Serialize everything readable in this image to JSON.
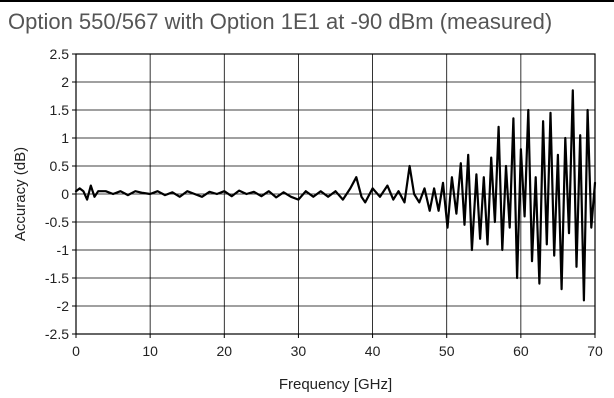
{
  "chart_data": {
    "type": "line",
    "title": "Option 550/567 with Option 1E1 at -90 dBm (measured)",
    "xlabel": "Frequency [GHz]",
    "ylabel": "Accuracy (dB)",
    "xlim": [
      0,
      70
    ],
    "ylim": [
      -2.5,
      2.5
    ],
    "x_ticks": [
      "0",
      "10",
      "20",
      "30",
      "40",
      "50",
      "60",
      "70"
    ],
    "y_ticks": [
      "2.5",
      "2",
      "1.5",
      "1",
      "0.5",
      "0",
      "-0.5",
      "-1",
      "-1.5",
      "-2",
      "-2.5"
    ],
    "grid": true,
    "line_color": "#000000",
    "series": [
      {
        "x": [
          0,
          0.5,
          1,
          1.5,
          2,
          2.5,
          3,
          4,
          5,
          6,
          7,
          8,
          9,
          10,
          11,
          12,
          13,
          14,
          15,
          16,
          17,
          18,
          19,
          20,
          21,
          22,
          23,
          24,
          25,
          26,
          27,
          28,
          29,
          30,
          31,
          32,
          33,
          34,
          35,
          36,
          37,
          37.8,
          38.5,
          39,
          40,
          41,
          42,
          42.8,
          43.5,
          44.3,
          45,
          45.6,
          46.3,
          47,
          47.7,
          48.3,
          48.9,
          49.5,
          50.1,
          50.7,
          51.3,
          51.9,
          52.4,
          52.9,
          53.4,
          54,
          54.5,
          55,
          55.5,
          56,
          56.5,
          57,
          57.5,
          58,
          58.5,
          59,
          59.5,
          60,
          60.5,
          61,
          61.5,
          62,
          62.5,
          63,
          63.5,
          64,
          64.5,
          65,
          65.5,
          66,
          66.5,
          67,
          67.5,
          68,
          68.5,
          69,
          69.5,
          70
        ],
        "values": [
          0.05,
          0.1,
          0.05,
          -0.1,
          0.15,
          -0.05,
          0.05,
          0.05,
          0.0,
          0.05,
          -0.02,
          0.05,
          0.02,
          0.0,
          0.05,
          -0.02,
          0.03,
          -0.05,
          0.05,
          0.0,
          -0.05,
          0.04,
          0.0,
          0.05,
          -0.04,
          0.06,
          0.0,
          0.04,
          -0.04,
          0.05,
          -0.06,
          0.03,
          -0.05,
          -0.1,
          0.05,
          -0.05,
          0.05,
          -0.05,
          0.05,
          -0.1,
          0.1,
          0.3,
          -0.05,
          -0.15,
          0.1,
          -0.05,
          0.15,
          -0.1,
          0.05,
          -0.15,
          0.5,
          0.0,
          -0.15,
          0.1,
          -0.3,
          0.1,
          -0.3,
          0.2,
          -0.6,
          0.3,
          -0.35,
          0.55,
          -0.55,
          0.7,
          -1.0,
          0.35,
          -0.8,
          0.3,
          -0.9,
          0.65,
          -0.5,
          1.2,
          -1.0,
          0.5,
          -0.6,
          1.35,
          -1.5,
          0.8,
          -0.4,
          1.5,
          -1.2,
          0.3,
          -1.6,
          1.3,
          -0.9,
          1.45,
          -1.1,
          0.7,
          -1.7,
          1.0,
          -0.7,
          1.85,
          -1.3,
          1.05,
          -1.9,
          1.5,
          -0.6,
          0.2
        ]
      }
    ]
  }
}
